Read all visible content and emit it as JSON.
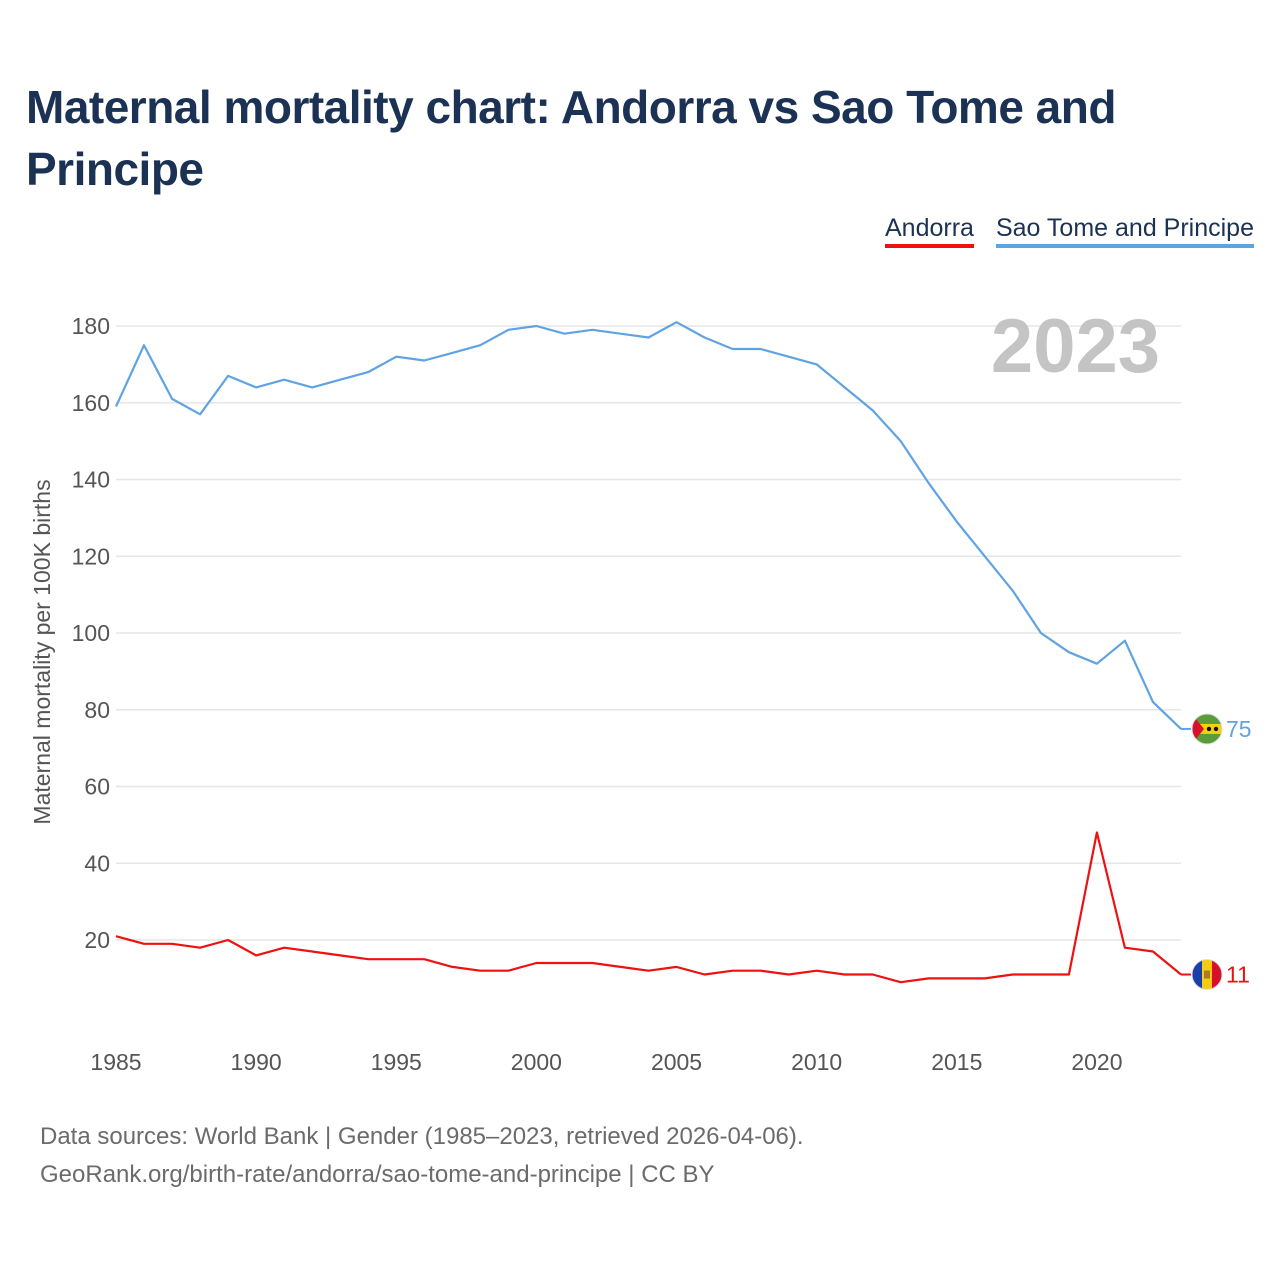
{
  "title": "Maternal mortality chart: Andorra vs Sao Tome and Principe",
  "legend": {
    "andorra": "Andorra",
    "stp": "Sao Tome and Principe"
  },
  "year_watermark": "2023",
  "footer": {
    "line1": "Data sources: World Bank | Gender (1985–2023, retrieved 2026-04-06).",
    "line2": "GeoRank.org/birth-rate/andorra/sao-tome-and-principe | CC BY"
  },
  "chart_data": {
    "type": "line",
    "title": "Maternal mortality chart: Andorra vs Sao Tome and Principe",
    "xlabel": "",
    "ylabel": "Maternal mortality per 100K births",
    "xlim": [
      1985,
      2023
    ],
    "ylim": [
      0,
      190
    ],
    "x_ticks": [
      1985,
      1990,
      1995,
      2000,
      2005,
      2010,
      2015,
      2020
    ],
    "y_ticks": [
      20,
      40,
      60,
      80,
      100,
      120,
      140,
      160,
      180
    ],
    "grid": true,
    "x": [
      1985,
      1986,
      1987,
      1988,
      1989,
      1990,
      1991,
      1992,
      1993,
      1994,
      1995,
      1996,
      1997,
      1998,
      1999,
      2000,
      2001,
      2002,
      2003,
      2004,
      2005,
      2006,
      2007,
      2008,
      2009,
      2010,
      2011,
      2012,
      2013,
      2014,
      2015,
      2016,
      2017,
      2018,
      2019,
      2020,
      2021,
      2022,
      2023
    ],
    "series": [
      {
        "name": "Andorra",
        "color": "#ee1111",
        "end_label": "11",
        "values": [
          21,
          19,
          19,
          18,
          20,
          16,
          18,
          17,
          16,
          15,
          15,
          15,
          13,
          12,
          12,
          14,
          14,
          14,
          13,
          12,
          13,
          11,
          12,
          12,
          11,
          12,
          11,
          11,
          9,
          10,
          10,
          10,
          11,
          11,
          11,
          48,
          18,
          17,
          11
        ]
      },
      {
        "name": "Sao Tome and Principe",
        "color": "#5fa3e3",
        "end_label": "75",
        "values": [
          159,
          175,
          161,
          157,
          167,
          164,
          166,
          164,
          166,
          168,
          172,
          171,
          173,
          175,
          179,
          180,
          178,
          179,
          178,
          177,
          181,
          177,
          174,
          174,
          172,
          170,
          164,
          158,
          150,
          139,
          129,
          120,
          111,
          100,
          95,
          92,
          98,
          82,
          75
        ]
      }
    ]
  }
}
